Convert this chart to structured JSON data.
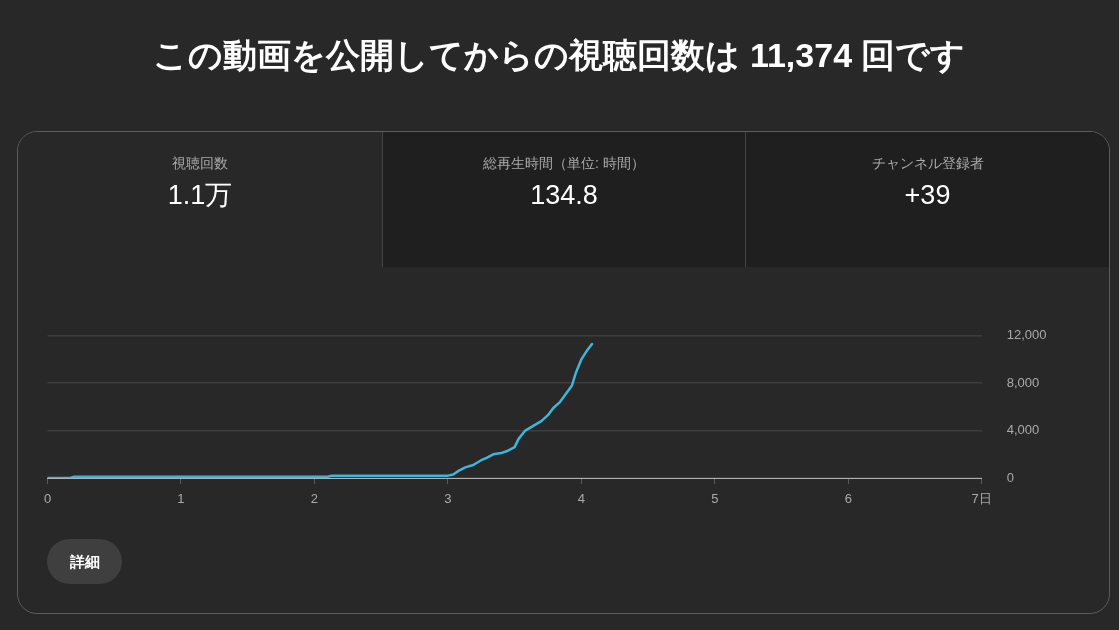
{
  "chart_data": [
    {
      "type": "other",
      "title": "この動画を公開してからの視聴回数は 11,374 回です",
      "categories": [
        "視聴回数",
        "総再生時間（単位: 時間）",
        "チャンネル登録者"
      ],
      "value_labels": [
        "1.1万",
        "134.8",
        "+39"
      ]
    },
    {
      "type": "line",
      "color": "#3fb4dc",
      "marker": "none",
      "grid": "y",
      "x": [
        0,
        0.17,
        0.2,
        2.1,
        2.13,
        3.0,
        3.04,
        3.08,
        3.13,
        3.19,
        3.25,
        3.29,
        3.34,
        3.4,
        3.45,
        3.5,
        3.53,
        3.58,
        3.64,
        3.7,
        3.75,
        3.79,
        3.84,
        3.93,
        3.96,
        4.0,
        4.04,
        4.08
      ],
      "values": [
        0,
        0,
        100,
        100,
        200,
        200,
        300,
        600,
        900,
        1100,
        1500,
        1700,
        2000,
        2100,
        2300,
        2600,
        3300,
        4000,
        4400,
        4800,
        5300,
        5900,
        6400,
        7800,
        8900,
        10000,
        10700,
        11300
      ],
      "xlim": [
        0,
        7
      ],
      "xticks": [
        0,
        1,
        2,
        3,
        4,
        5,
        6,
        {
          "value": 7,
          "label": "7日"
        }
      ],
      "ylim": [
        0,
        12000
      ],
      "yticks": [
        0,
        {
          "value": 4000,
          "label": "4,000"
        },
        {
          "value": 8000,
          "label": "8,000"
        },
        {
          "value": 12000,
          "label": "12,000"
        }
      ],
      "annotations": [
        "詳細"
      ]
    }
  ]
}
